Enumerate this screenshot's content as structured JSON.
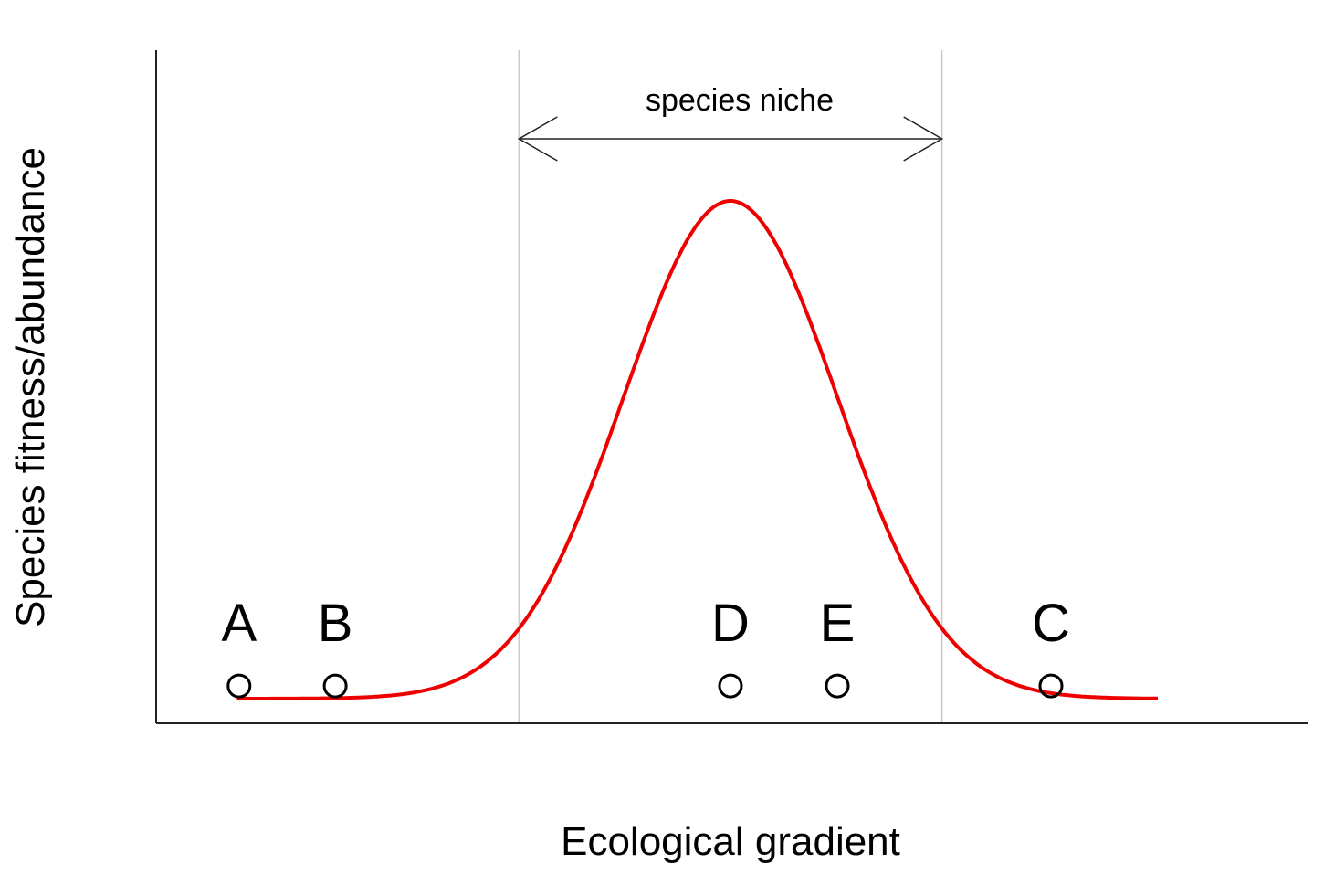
{
  "chart_data": {
    "type": "line",
    "title": "",
    "xlabel": "Ecological gradient",
    "ylabel": "Species fitness/abundance",
    "xlim": [
      -4,
      5.2
    ],
    "ylim": [
      0,
      1.0
    ],
    "grid": false,
    "curve": {
      "color": "#ee0000",
      "function": "gaussian",
      "mean": 1.0,
      "sd": 1.0,
      "peak": 1.0,
      "x_range": [
        -3.62,
        5.0
      ]
    },
    "niche": {
      "label": "species niche",
      "x_start": -0.98,
      "x_end": 2.98
    },
    "sites": [
      {
        "label": "A",
        "x": -3.6,
        "y": 0.02
      },
      {
        "label": "B",
        "x": -2.7,
        "y": 0.02
      },
      {
        "label": "D",
        "x": 1.0,
        "y": 0.02
      },
      {
        "label": "E",
        "x": 2.0,
        "y": 0.02
      },
      {
        "label": "C",
        "x": 4.0,
        "y": 0.02
      }
    ]
  }
}
